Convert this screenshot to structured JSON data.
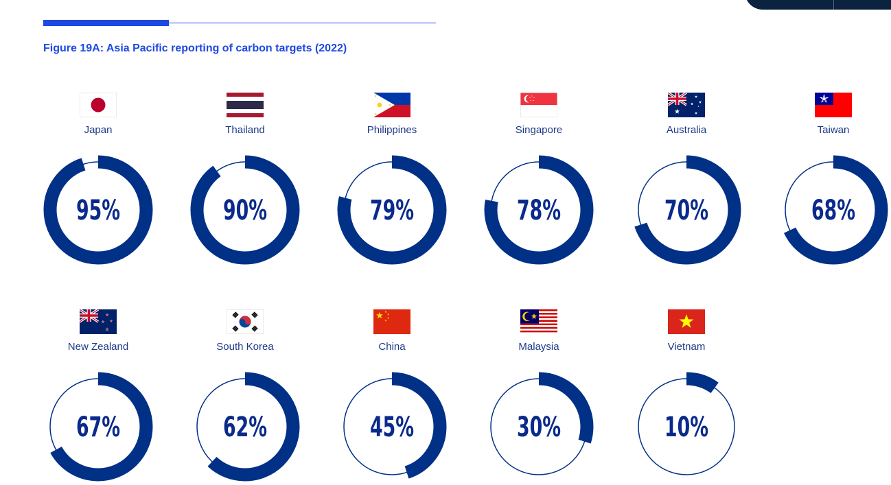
{
  "figure": {
    "title": "Figure 19A: Asia Pacific reporting of carbon targets (2022)"
  },
  "colors": {
    "accent_rule": "#1e49e2",
    "ring": "#013087",
    "country_label": "#1d3a87",
    "percent_text": "#0a2a8c",
    "corner_tab": "#0c233f"
  },
  "chart_data": {
    "type": "donut",
    "items": [
      {
        "country": "Japan",
        "value": 95,
        "label": "95%",
        "flag": "japan-flag"
      },
      {
        "country": "Thailand",
        "value": 90,
        "label": "90%",
        "flag": "thailand-flag"
      },
      {
        "country": "Philippines",
        "value": 79,
        "label": "79%",
        "flag": "philippines-flag"
      },
      {
        "country": "Singapore",
        "value": 78,
        "label": "78%",
        "flag": "singapore-flag"
      },
      {
        "country": "Australia",
        "value": 70,
        "label": "70%",
        "flag": "australia-flag"
      },
      {
        "country": "Taiwan",
        "value": 68,
        "label": "68%",
        "flag": "taiwan-flag"
      },
      {
        "country": "New Zealand",
        "value": 67,
        "label": "67%",
        "flag": "new-zealand-flag"
      },
      {
        "country": "South Korea",
        "value": 62,
        "label": "62%",
        "flag": "south-korea-flag"
      },
      {
        "country": "China",
        "value": 45,
        "label": "45%",
        "flag": "china-flag"
      },
      {
        "country": "Malaysia",
        "value": 30,
        "label": "30%",
        "flag": "malaysia-flag"
      },
      {
        "country": "Vietnam",
        "value": 10,
        "label": "10%",
        "flag": "vietnam-flag"
      }
    ]
  }
}
